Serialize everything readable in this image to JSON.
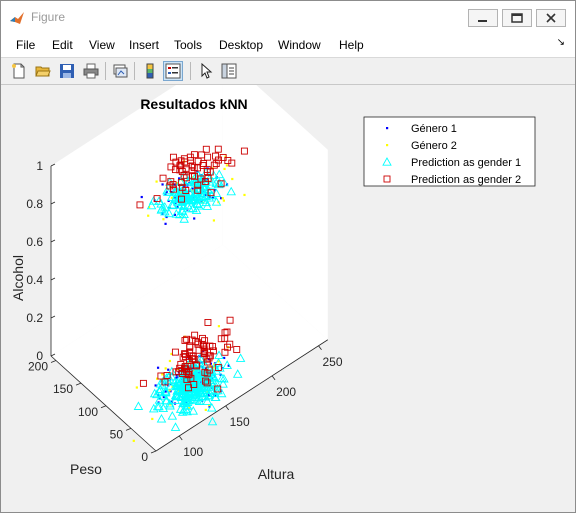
{
  "window": {
    "title": "Figure"
  },
  "menu": [
    "File",
    "Edit",
    "View",
    "Insert",
    "Tools",
    "Desktop",
    "Window",
    "Help"
  ],
  "toolbar": {
    "icons": [
      "new-figure-icon",
      "open-file-icon",
      "save-icon",
      "print-icon",
      "link-plot-icon",
      "insert-colorbar-icon",
      "insert-legend-icon",
      "edit-plot-icon",
      "property-inspector-icon"
    ]
  },
  "chart_data": {
    "type": "scatter",
    "title": "Resultados kNN",
    "xlabel": "Altura",
    "ylabel": "Peso",
    "zlabel": "Alcohol",
    "x_ticks": [
      "100",
      "150",
      "200",
      "250"
    ],
    "y_ticks": [
      "0",
      "50",
      "100",
      "150",
      "200"
    ],
    "z_ticks": [
      "0",
      "0.2",
      "0.4",
      "0.6",
      "0.8",
      "1"
    ],
    "xlim": [
      75,
      260
    ],
    "ylim": [
      0,
      210
    ],
    "zlim": [
      0,
      1
    ],
    "legend_position": "top-right",
    "series": [
      {
        "name": "Género 1",
        "marker": "dot",
        "color": "#0000ff",
        "clusters": [
          {
            "cx": 145,
            "cy": 60,
            "z": 0,
            "n": 90,
            "sx": 18,
            "sy": 18,
            "sz": 0.015
          },
          {
            "cx": 145,
            "cy": 60,
            "z": 1,
            "n": 60,
            "sx": 16,
            "sy": 16,
            "sz": 0.015
          }
        ]
      },
      {
        "name": "Género 2",
        "marker": "dot",
        "color": "#ffff00",
        "clusters": [
          {
            "cx": 150,
            "cy": 65,
            "z": 0,
            "n": 40,
            "sx": 25,
            "sy": 25,
            "sz": 0.015
          },
          {
            "cx": 148,
            "cy": 62,
            "z": 1,
            "n": 30,
            "sx": 22,
            "sy": 22,
            "sz": 0.015
          }
        ]
      },
      {
        "name": "Prediction as gender 1",
        "marker": "triangle",
        "color": "#00ffff",
        "clusters": [
          {
            "cx": 140,
            "cy": 55,
            "z": 0,
            "n": 260,
            "sx": 16,
            "sy": 16,
            "sz": 0.01
          },
          {
            "cx": 142,
            "cy": 57,
            "z": 1,
            "n": 130,
            "sx": 14,
            "sy": 14,
            "sz": 0.01
          }
        ]
      },
      {
        "name": "Prediction as gender 2",
        "marker": "square",
        "color": "#cc0000",
        "clusters": [
          {
            "cx": 165,
            "cy": 85,
            "z": 0,
            "n": 80,
            "sx": 18,
            "sy": 18,
            "sz": 0.015
          },
          {
            "cx": 165,
            "cy": 85,
            "z": 1,
            "n": 60,
            "sx": 16,
            "sy": 16,
            "sz": 0.015
          }
        ]
      }
    ]
  }
}
